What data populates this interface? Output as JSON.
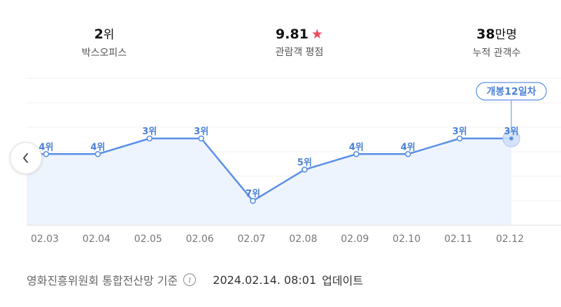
{
  "stats": [
    {
      "value": "2",
      "unit": "위",
      "label": "박스오피스"
    },
    {
      "value": "9.81",
      "star": "★",
      "label": "관람객 평점"
    },
    {
      "value": "38",
      "unit": "만명",
      "label": "누적 관객수"
    }
  ],
  "chart_data": {
    "type": "line",
    "categories": [
      "02.03",
      "02.04",
      "02.05",
      "02.06",
      "02.07",
      "02.08",
      "02.09",
      "02.10",
      "02.11",
      "02.12"
    ],
    "values": [
      4,
      4,
      3,
      3,
      7,
      5,
      4,
      4,
      3,
      3
    ],
    "point_labels": [
      "4위",
      "4위",
      "3위",
      "3위",
      "7위",
      "5위",
      "4위",
      "4위",
      "3위",
      "3위"
    ],
    "y_inverted": true,
    "yrange": [
      2,
      8
    ],
    "highlight_index": 9,
    "highlight_label": "개봉12일차",
    "colors": {
      "line": "#5a8fe6",
      "fill": "#eef4fe",
      "label": "#4a7fd6"
    }
  },
  "footer": {
    "source": "영화진흥위원회 통합전산망 기준",
    "info_icon": "i",
    "update_time": "2024.02.14. 08:01",
    "update_label": "업데이트"
  },
  "nav": {
    "prev_icon": "chevron-left-icon"
  }
}
